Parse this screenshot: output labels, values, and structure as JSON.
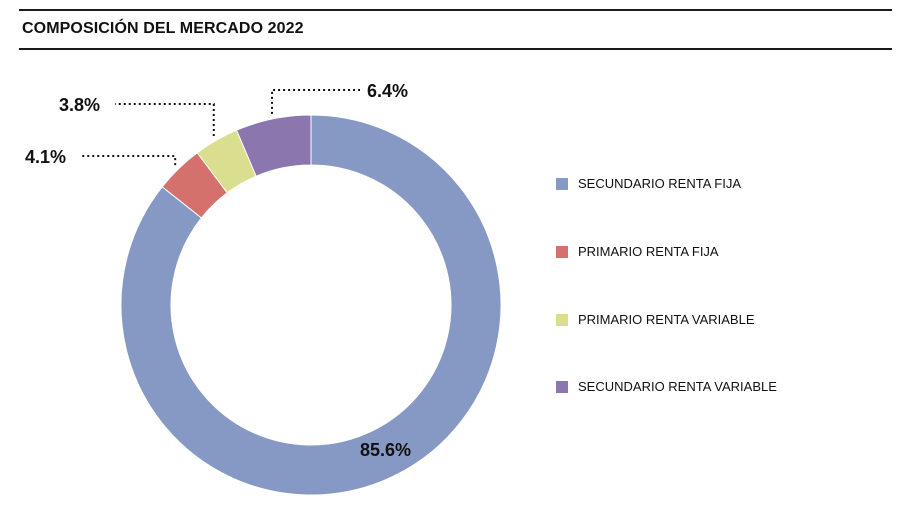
{
  "title": "COMPOSICIÓN DEL MERCADO 2022",
  "chart_data": {
    "type": "pie",
    "donut": true,
    "title": "COMPOSICIÓN DEL MERCADO 2022",
    "series": [
      {
        "name": "SECUNDARIO RENTA FIJA",
        "value": 85.6,
        "label": "85.6%",
        "color": "#8698c4"
      },
      {
        "name": "PRIMARIO RENTA FIJA",
        "value": 4.1,
        "label": "4.1%",
        "color": "#d4716c"
      },
      {
        "name": "PRIMARIO RENTA VARIABLE",
        "value": 3.8,
        "label": "3.8%",
        "color": "#d9df8e"
      },
      {
        "name": "SECUNDARIO RENTA VARIABLE",
        "value": 6.4,
        "label": "6.4%",
        "color": "#8b76ae"
      }
    ],
    "legend_position": "right"
  }
}
